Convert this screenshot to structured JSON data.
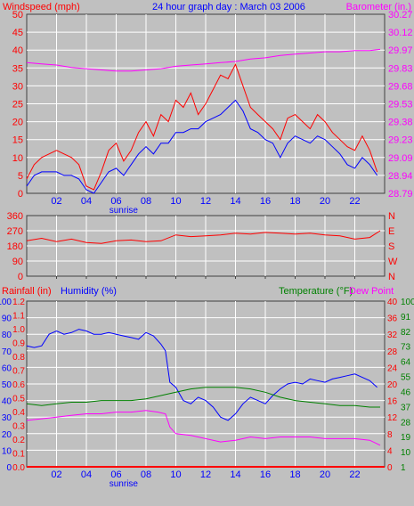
{
  "header": {
    "left_title": "Windspeed (mph)",
    "center_title": "24 hour graph day : March 03 2006",
    "right_title": "Barometer (in.)"
  },
  "x_axis": {
    "tick_labels": [
      "02",
      "04",
      "06",
      "08",
      "10",
      "12",
      "14",
      "16",
      "18",
      "20",
      "22"
    ],
    "sunrise_label": "sunrise",
    "sunrise_hour": 6.5
  },
  "colors": {
    "plot_bg": "#c0c0c0",
    "grid": "#ffffff",
    "wind": "#ff0000",
    "gust_avg": "#0000ff",
    "barometer": "#ff00ff",
    "humidity": "#0000ff",
    "temperature": "#008000",
    "dewpoint": "#ff00ff",
    "rainfall": "#ff0000",
    "axis_text_blue": "#0000ff",
    "axis_text_red": "#ff0000",
    "axis_text_green": "#008000",
    "axis_text_magenta": "#ff00ff"
  },
  "chart_data": [
    {
      "type": "line",
      "title": "24 hour graph day : March 03 2006",
      "ylabel": "Windspeed (mph)",
      "y2label": "Barometer (in.)",
      "ylim": [
        0,
        50
      ],
      "y_ticks": [
        0,
        5,
        10,
        15,
        20,
        25,
        30,
        35,
        40,
        45,
        50
      ],
      "y2lim": [
        28.79,
        30.27
      ],
      "y2_ticks": [
        "28.79",
        "28.94",
        "29.09",
        "29.23",
        "29.38",
        "29.53",
        "29.68",
        "29.83",
        "29.97",
        "30.12",
        "30.27"
      ],
      "xlim": [
        0,
        24
      ],
      "series": [
        {
          "key": "wind",
          "axis": "left",
          "color": "#ff0000",
          "x": [
            0,
            0.5,
            1,
            1.5,
            2,
            2.5,
            3,
            3.5,
            4,
            4.5,
            5,
            5.5,
            6,
            6.5,
            7,
            7.5,
            8,
            8.5,
            9,
            9.5,
            10,
            10.5,
            11,
            11.5,
            12,
            12.5,
            13,
            13.5,
            14,
            14.5,
            15,
            15.5,
            16,
            16.5,
            17,
            17.5,
            18,
            18.5,
            19,
            19.5,
            20,
            20.5,
            21,
            21.5,
            22,
            22.5,
            23,
            23.5
          ],
          "values": [
            4,
            8,
            10,
            11,
            12,
            11,
            10,
            8,
            2,
            1,
            6,
            12,
            14,
            9,
            12,
            17,
            20,
            16,
            22,
            20,
            26,
            24,
            28,
            22,
            25,
            29,
            33,
            32,
            36,
            30,
            24,
            22,
            20,
            18,
            15,
            21,
            22,
            20,
            18,
            22,
            20,
            17,
            15,
            13,
            12,
            16,
            12,
            6
          ]
        },
        {
          "key": "gust_avg",
          "axis": "left",
          "color": "#0000ff",
          "x": [
            0,
            0.5,
            1,
            1.5,
            2,
            2.5,
            3,
            3.5,
            4,
            4.5,
            5,
            5.5,
            6,
            6.5,
            7,
            7.5,
            8,
            8.5,
            9,
            9.5,
            10,
            10.5,
            11,
            11.5,
            12,
            12.5,
            13,
            13.5,
            14,
            14.5,
            15,
            15.5,
            16,
            16.5,
            17,
            17.5,
            18,
            18.5,
            19,
            19.5,
            20,
            20.5,
            21,
            21.5,
            22,
            22.5,
            23,
            23.5
          ],
          "values": [
            2,
            5,
            6,
            6,
            6,
            5,
            5,
            4,
            1,
            0,
            3,
            6,
            7,
            5,
            8,
            11,
            13,
            11,
            14,
            14,
            17,
            17,
            18,
            18,
            20,
            21,
            22,
            24,
            26,
            23,
            18,
            17,
            15,
            14,
            10,
            14,
            16,
            15,
            14,
            16,
            15,
            13,
            11,
            8,
            7,
            10,
            8,
            5
          ]
        },
        {
          "key": "barometer",
          "axis": "right",
          "color": "#ff00ff",
          "x": [
            0,
            1,
            2,
            3,
            4,
            5,
            6,
            7,
            8,
            9,
            10,
            11,
            12,
            13,
            14,
            15,
            16,
            17,
            18,
            19,
            20,
            21,
            22,
            23,
            23.7
          ],
          "values": [
            29.87,
            29.86,
            29.85,
            29.83,
            29.82,
            29.81,
            29.8,
            29.8,
            29.81,
            29.82,
            29.84,
            29.85,
            29.86,
            29.87,
            29.88,
            29.9,
            29.91,
            29.93,
            29.94,
            29.95,
            29.96,
            29.96,
            29.97,
            29.97,
            29.98
          ]
        }
      ]
    },
    {
      "type": "line",
      "ylabel": "Wind direction",
      "ylim": [
        0,
        360
      ],
      "y_ticks": [
        0,
        90,
        180,
        270,
        360
      ],
      "y2_ticks": [
        "N",
        "W",
        "S",
        "E",
        "N"
      ],
      "xlim": [
        0,
        24
      ],
      "series": [
        {
          "key": "direction",
          "axis": "left",
          "color": "#ff0000",
          "x": [
            0,
            1,
            2,
            3,
            4,
            5,
            6,
            7,
            8,
            9,
            10,
            11,
            12,
            13,
            14,
            15,
            16,
            17,
            18,
            19,
            20,
            21,
            22,
            23,
            23.7
          ],
          "values": [
            210,
            225,
            205,
            220,
            200,
            195,
            210,
            215,
            205,
            210,
            245,
            235,
            240,
            245,
            255,
            250,
            260,
            255,
            250,
            255,
            245,
            240,
            220,
            230,
            270
          ]
        }
      ]
    },
    {
      "type": "line",
      "ylabel": "Rainfall (in)",
      "y2label": "Humidity (%)",
      "y3label": "Temperature (°F)",
      "y4label": "Dew Point",
      "ylim": [
        0,
        100
      ],
      "humidity_ticks": [
        0,
        10,
        20,
        30,
        40,
        50,
        60,
        70,
        80,
        90,
        100
      ],
      "rain_ticks": [
        "0.0",
        "0.1",
        "0.2",
        "0.3",
        "0.4",
        "0.5",
        "0.6",
        "0.7",
        "0.8",
        "0.9",
        "1.0",
        "1.1",
        "1.2"
      ],
      "temp_ticks": [
        0,
        4,
        8,
        12,
        16,
        20,
        24,
        28,
        32,
        36,
        40
      ],
      "dew_ticks": [
        1,
        10,
        19,
        28,
        37,
        46,
        55,
        64,
        73,
        82,
        91,
        100
      ],
      "xlim": [
        0,
        24
      ],
      "series": [
        {
          "key": "humidity",
          "axis": "humidity",
          "color": "#0000ff",
          "x": [
            0,
            0.5,
            1,
            1.5,
            2,
            2.5,
            3,
            3.5,
            4,
            4.5,
            5,
            5.5,
            6,
            6.5,
            7,
            7.5,
            8,
            8.5,
            9,
            9.3,
            9.6,
            10,
            10.5,
            11,
            11.5,
            12,
            12.5,
            13,
            13.5,
            14,
            14.5,
            15,
            15.5,
            16,
            16.5,
            17,
            17.5,
            18,
            18.5,
            19,
            19.5,
            20,
            20.5,
            21,
            21.5,
            22,
            22.5,
            23,
            23.5
          ],
          "values": [
            73,
            72,
            73,
            80,
            82,
            80,
            81,
            83,
            82,
            80,
            80,
            81,
            80,
            79,
            78,
            77,
            81,
            79,
            74,
            70,
            51,
            48,
            40,
            38,
            42,
            40,
            36,
            30,
            28,
            32,
            38,
            42,
            40,
            38,
            43,
            47,
            50,
            51,
            50,
            53,
            52,
            51,
            53,
            54,
            55,
            56,
            54,
            52,
            48
          ]
        },
        {
          "key": "temperature",
          "axis": "humidity",
          "color": "#008000",
          "x": [
            0,
            1,
            2,
            3,
            4,
            5,
            6,
            7,
            8,
            9,
            10,
            11,
            12,
            13,
            14,
            15,
            16,
            17,
            18,
            19,
            20,
            21,
            22,
            23,
            23.7
          ],
          "values": [
            38,
            37,
            38,
            39,
            39,
            40,
            40,
            40,
            41,
            43,
            45,
            47,
            48,
            48,
            48,
            47,
            45,
            42,
            40,
            39,
            38,
            37,
            37,
            36,
            36
          ]
        },
        {
          "key": "dewpoint",
          "axis": "humidity",
          "color": "#ff00ff",
          "x": [
            0,
            1,
            2,
            3,
            4,
            5,
            6,
            7,
            8,
            8.8,
            9.3,
            9.6,
            10,
            11,
            12,
            13,
            14,
            15,
            16,
            17,
            18,
            19,
            20,
            21,
            22,
            23,
            23.7
          ],
          "values": [
            28,
            29,
            30,
            31,
            32,
            32,
            33,
            33,
            34,
            33,
            32,
            24,
            20,
            19,
            17,
            15,
            16,
            18,
            17,
            18,
            18,
            18,
            17,
            17,
            17,
            16,
            13
          ]
        },
        {
          "key": "rainfall",
          "axis": "humidity",
          "color": "#ff0000",
          "x": [
            0,
            24
          ],
          "values": [
            0,
            0
          ]
        }
      ]
    }
  ],
  "panels": {
    "direction": {},
    "bottom": {
      "left_title": "Rainfall (in)",
      "humidity_title": "Humidity (%)",
      "temperature_title": "Temperature (°F)",
      "dewpoint_title": "Dew Point"
    }
  }
}
